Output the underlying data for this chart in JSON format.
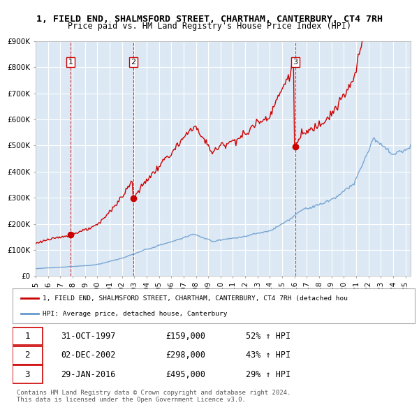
{
  "title_line1": "1, FIELD END, SHALMSFORD STREET, CHARTHAM, CANTERBURY, CT4 7RH",
  "title_line2": "Price paid vs. HM Land Registry's House Price Index (HPI)",
  "ylabel": "",
  "xlabel": "",
  "ylim": [
    0,
    900000
  ],
  "yticks": [
    0,
    100000,
    200000,
    300000,
    400000,
    500000,
    600000,
    700000,
    800000,
    900000
  ],
  "ytick_labels": [
    "£0",
    "£100K",
    "£200K",
    "£300K",
    "£400K",
    "£500K",
    "£600K",
    "£700K",
    "£800K",
    "£900K"
  ],
  "background_color": "#dce9f5",
  "plot_bg_color": "#dce9f5",
  "fig_bg_color": "#ffffff",
  "red_line_color": "#cc0000",
  "blue_line_color": "#6699cc",
  "marker_color": "#cc0000",
  "vline_color": "#cc0000",
  "sale_dates": [
    "1997-10-31",
    "2002-12-02",
    "2016-01-29"
  ],
  "sale_prices": [
    159000,
    298000,
    495000
  ],
  "sale_labels": [
    "1",
    "2",
    "3"
  ],
  "legend_label_red": "1, FIELD END, SHALMSFORD STREET, CHARTHAM, CANTERBURY, CT4 7RH (detached hou",
  "legend_label_blue": "HPI: Average price, detached house, Canterbury",
  "table_rows": [
    [
      "1",
      "31-OCT-1997",
      "£159,000",
      "52% ↑ HPI"
    ],
    [
      "2",
      "02-DEC-2002",
      "£298,000",
      "43% ↑ HPI"
    ],
    [
      "3",
      "29-JAN-2016",
      "£495,000",
      "29% ↑ HPI"
    ]
  ],
  "footnote1": "Contains HM Land Registry data © Crown copyright and database right 2024.",
  "footnote2": "This data is licensed under the Open Government Licence v3.0.",
  "title_fontsize": 10,
  "subtitle_fontsize": 9,
  "axis_fontsize": 8,
  "start_year": 1995,
  "end_year": 2025
}
